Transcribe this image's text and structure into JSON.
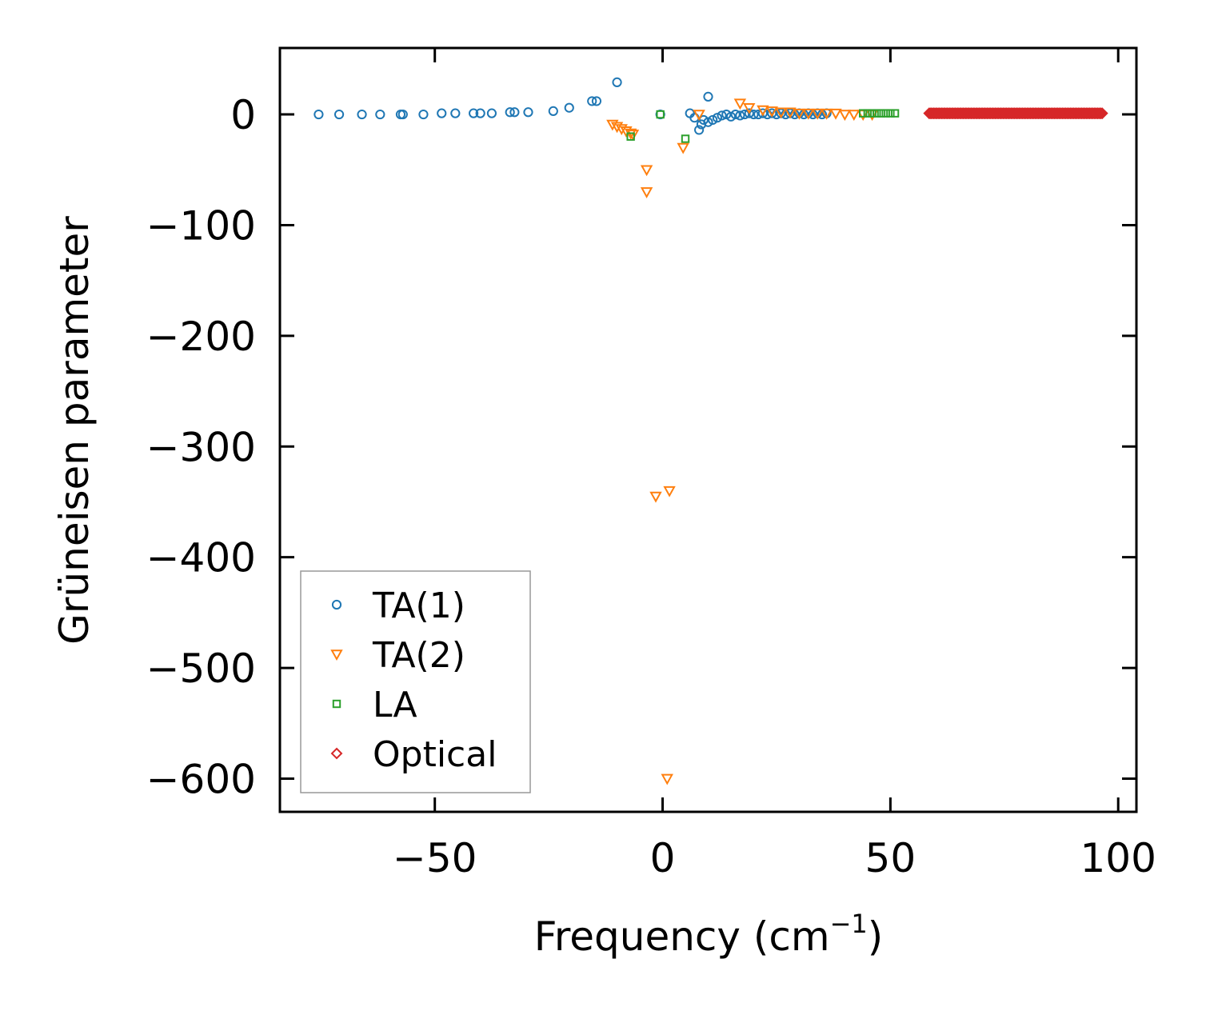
{
  "chart_data": {
    "type": "scatter",
    "title": "",
    "xlabel": "Frequency (cm",
    "xlabel_sup": "−1",
    "xlabel_close": ")",
    "ylabel": "Grüneisen parameter",
    "xlim": [
      -84,
      104
    ],
    "ylim": [
      -630,
      60
    ],
    "xticks": [
      -50,
      0,
      50,
      100
    ],
    "xtick_labels": [
      "−50",
      "0",
      "50",
      "100"
    ],
    "yticks": [
      0,
      -100,
      -200,
      -300,
      -400,
      -500,
      -600
    ],
    "ytick_labels": [
      "0",
      "−100",
      "−200",
      "−300",
      "−400",
      "−500",
      "−600"
    ],
    "legend_position": "lower-left",
    "series": [
      {
        "name": "TA(1)",
        "marker": "circle",
        "color": "#1f77b4",
        "points": [
          [
            -75.5,
            0
          ],
          [
            -71,
            0
          ],
          [
            -66,
            0
          ],
          [
            -62,
            0
          ],
          [
            -57.5,
            0
          ],
          [
            -57,
            0
          ],
          [
            -52.5,
            0
          ],
          [
            -48.5,
            1
          ],
          [
            -45.5,
            1
          ],
          [
            -41.5,
            1
          ],
          [
            -40,
            1
          ],
          [
            -37.5,
            1
          ],
          [
            -33.5,
            2
          ],
          [
            -32.5,
            2
          ],
          [
            -29.5,
            2
          ],
          [
            -24,
            3
          ],
          [
            -20.5,
            6
          ],
          [
            -15.5,
            12
          ],
          [
            -14.5,
            12
          ],
          [
            -10,
            29
          ],
          [
            -0.5,
            0
          ],
          [
            6,
            1
          ],
          [
            7,
            -3
          ],
          [
            8,
            -14
          ],
          [
            8.5,
            -9
          ],
          [
            9,
            -5
          ],
          [
            10,
            16
          ],
          [
            10,
            -7
          ],
          [
            11,
            -5
          ],
          [
            12,
            -3
          ],
          [
            13,
            -1
          ],
          [
            14,
            0
          ],
          [
            15,
            -2
          ],
          [
            16,
            0
          ],
          [
            17,
            -1
          ],
          [
            18,
            0
          ],
          [
            19,
            1
          ],
          [
            20,
            0
          ],
          [
            21,
            0
          ],
          [
            22,
            1
          ],
          [
            23,
            0
          ],
          [
            24,
            1
          ],
          [
            25,
            0
          ],
          [
            26,
            1
          ],
          [
            27,
            0
          ],
          [
            28,
            1
          ],
          [
            29,
            0
          ],
          [
            30,
            1
          ],
          [
            31,
            0
          ],
          [
            32,
            1
          ],
          [
            33,
            0
          ],
          [
            34,
            1
          ],
          [
            35,
            0
          ],
          [
            36,
            1
          ]
        ]
      },
      {
        "name": "TA(2)",
        "marker": "triangle-down",
        "color": "#ff7f0e",
        "points": [
          [
            -11,
            -9
          ],
          [
            -10,
            -11
          ],
          [
            -9,
            -13
          ],
          [
            -8,
            -15
          ],
          [
            -7,
            -17
          ],
          [
            -6.5,
            -18
          ],
          [
            -3.5,
            -50
          ],
          [
            -3.5,
            -70
          ],
          [
            -1.5,
            -345
          ],
          [
            1.5,
            -340
          ],
          [
            1,
            -600
          ],
          [
            4.5,
            -30
          ],
          [
            8,
            0
          ],
          [
            17,
            10
          ],
          [
            19,
            6
          ],
          [
            22,
            4
          ],
          [
            24,
            3
          ],
          [
            26,
            2
          ],
          [
            28,
            2
          ],
          [
            30,
            1
          ],
          [
            32,
            1
          ],
          [
            34,
            1
          ],
          [
            36,
            1
          ],
          [
            38,
            1
          ],
          [
            40,
            0
          ],
          [
            42,
            0
          ],
          [
            44,
            0
          ],
          [
            46,
            0
          ]
        ]
      },
      {
        "name": "LA",
        "marker": "square",
        "color": "#2ca02c",
        "points": [
          [
            -7,
            -20
          ],
          [
            -0.5,
            0
          ],
          [
            5,
            -22
          ],
          [
            44,
            1
          ],
          [
            45,
            1
          ],
          [
            46,
            1
          ],
          [
            47,
            1
          ],
          [
            48,
            1
          ],
          [
            49,
            1
          ],
          [
            50,
            1
          ],
          [
            51,
            1
          ]
        ]
      },
      {
        "name": "Optical",
        "marker": "diamond",
        "color": "#d62728",
        "range": [
          58.5,
          96.5
        ],
        "step": 0.25,
        "y": 1
      }
    ]
  }
}
